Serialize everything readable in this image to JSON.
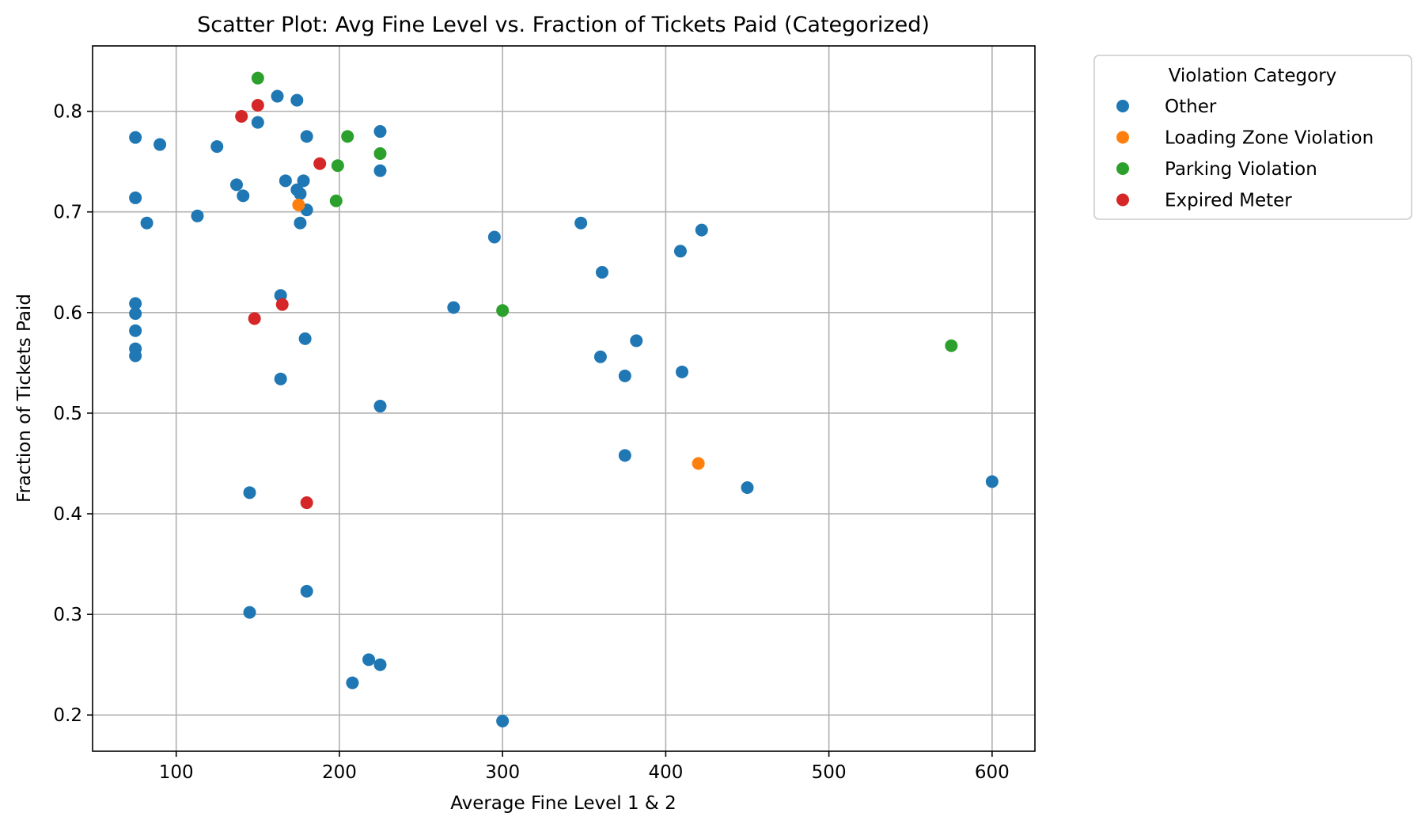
{
  "chart_data": {
    "type": "scatter",
    "title": "Scatter Plot: Avg Fine Level vs. Fraction of Tickets Paid (Categorized)",
    "xlabel": "Average Fine Level 1 & 2",
    "ylabel": "Fraction of Tickets Paid",
    "xlim": [
      48.75,
      626.25
    ],
    "ylim": [
      0.164,
      0.865
    ],
    "xticks": [
      100,
      200,
      300,
      400,
      500,
      600
    ],
    "yticks": [
      0.2,
      0.3,
      0.4,
      0.5,
      0.6,
      0.7,
      0.8
    ],
    "grid": true,
    "legend": {
      "title": "Violation Category",
      "placement": "outside-top-right"
    },
    "series": [
      {
        "name": "Other",
        "color": "#1f77b4",
        "points": [
          [
            75,
            0.774
          ],
          [
            90,
            0.767
          ],
          [
            75,
            0.714
          ],
          [
            82,
            0.689
          ],
          [
            113,
            0.696
          ],
          [
            125,
            0.765
          ],
          [
            137,
            0.727
          ],
          [
            141,
            0.716
          ],
          [
            150,
            0.789
          ],
          [
            162,
            0.815
          ],
          [
            174,
            0.811
          ],
          [
            180,
            0.775
          ],
          [
            225,
            0.78
          ],
          [
            225,
            0.741
          ],
          [
            167,
            0.731
          ],
          [
            178,
            0.731
          ],
          [
            174,
            0.722
          ],
          [
            176,
            0.718
          ],
          [
            180,
            0.702
          ],
          [
            176,
            0.689
          ],
          [
            75,
            0.609
          ],
          [
            75,
            0.599
          ],
          [
            75,
            0.582
          ],
          [
            75,
            0.564
          ],
          [
            75,
            0.557
          ],
          [
            164,
            0.617
          ],
          [
            179,
            0.574
          ],
          [
            164,
            0.534
          ],
          [
            225,
            0.507
          ],
          [
            145,
            0.421
          ],
          [
            145,
            0.302
          ],
          [
            180,
            0.323
          ],
          [
            218,
            0.255
          ],
          [
            225,
            0.25
          ],
          [
            208,
            0.232
          ],
          [
            300,
            0.194
          ],
          [
            270,
            0.605
          ],
          [
            295,
            0.675
          ],
          [
            348,
            0.689
          ],
          [
            361,
            0.64
          ],
          [
            409,
            0.661
          ],
          [
            422,
            0.682
          ],
          [
            360,
            0.556
          ],
          [
            375,
            0.537
          ],
          [
            382,
            0.572
          ],
          [
            410,
            0.541
          ],
          [
            375,
            0.458
          ],
          [
            450,
            0.426
          ],
          [
            600,
            0.432
          ]
        ]
      },
      {
        "name": "Loading Zone Violation",
        "color": "#ff7f0e",
        "points": [
          [
            175,
            0.707
          ],
          [
            420,
            0.45
          ]
        ]
      },
      {
        "name": "Parking Violation",
        "color": "#2ca02c",
        "points": [
          [
            150,
            0.833
          ],
          [
            205,
            0.775
          ],
          [
            199,
            0.746
          ],
          [
            225,
            0.758
          ],
          [
            198,
            0.711
          ],
          [
            300,
            0.602
          ],
          [
            575,
            0.567
          ]
        ]
      },
      {
        "name": "Expired Meter",
        "color": "#d62728",
        "points": [
          [
            140,
            0.795
          ],
          [
            150,
            0.806
          ],
          [
            188,
            0.748
          ],
          [
            148,
            0.594
          ],
          [
            165,
            0.608
          ],
          [
            180,
            0.411
          ]
        ]
      }
    ]
  }
}
